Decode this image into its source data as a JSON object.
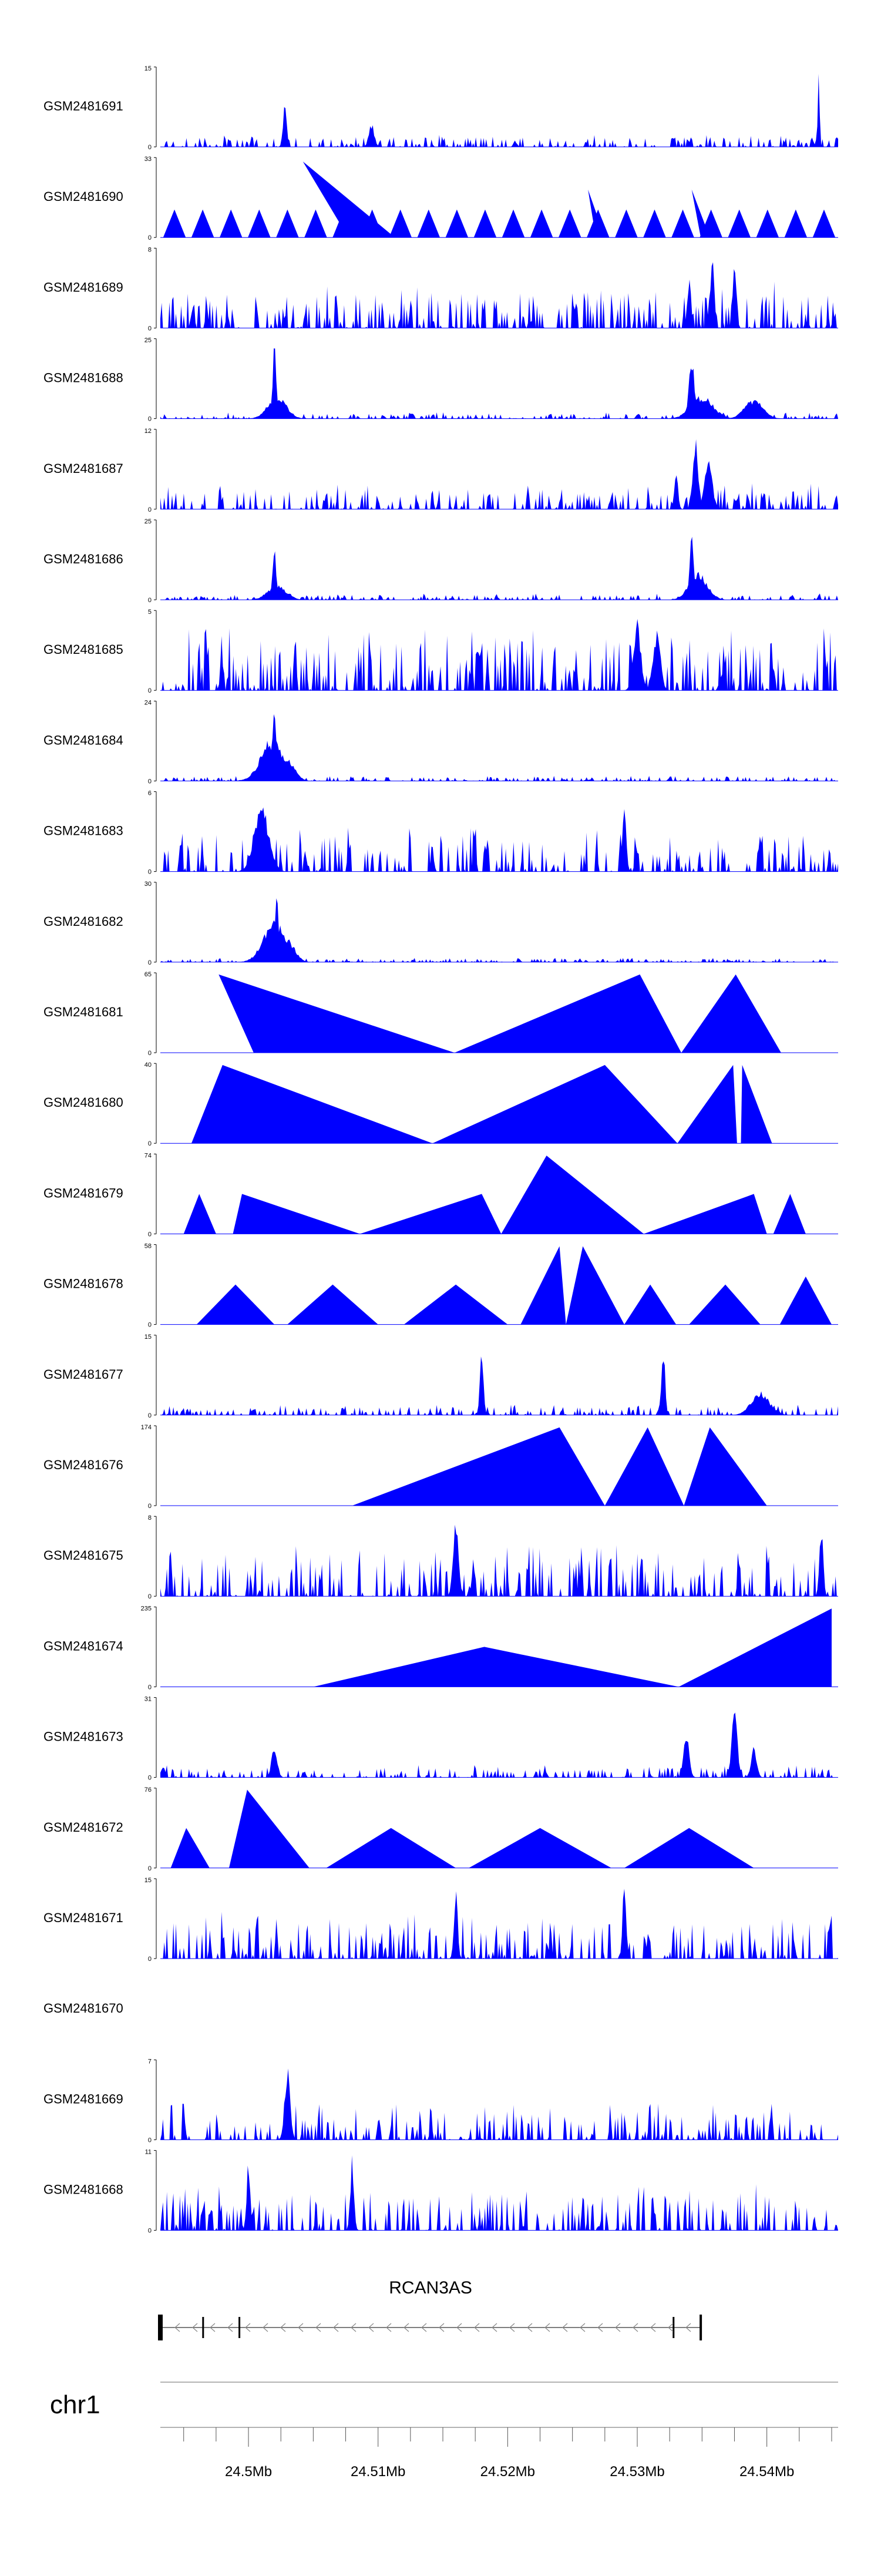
{
  "chart_data": {
    "type": "area",
    "xlim": [
      24.4932,
      24.5455
    ],
    "axis_ticks": [
      "24.5Mb",
      "24.51Mb",
      "24.52Mb",
      "24.53Mb",
      "24.54Mb"
    ],
    "tick_values": [
      24.5,
      24.51,
      24.52,
      24.53,
      24.54
    ],
    "colors": {
      "fill": "#0000ff",
      "axis": "#000000",
      "gene": "#000000",
      "chrom_line": "#9a9a9a"
    },
    "chromosome": "chr1",
    "gene": {
      "name": "RCAN3AS",
      "start": 24.4932,
      "end": 24.5349,
      "strand": "-",
      "exon_marks": [
        24.4965,
        24.4993,
        24.5328
      ]
    },
    "tracks": [
      {
        "name": "GSM2481691",
        "ymax": "15",
        "ymax_num": 15,
        "pattern": "noise",
        "amp": 0.12,
        "peaks": [
          [
            24.5028,
            0.55,
            0.0002
          ],
          [
            24.544,
            0.95,
            0.0001
          ],
          [
            24.5095,
            0.3,
            0.0003
          ]
        ]
      },
      {
        "name": "GSM2481690",
        "ymax": "33",
        "ymax_num": 33,
        "pattern": "tri",
        "tri_count": 24,
        "tri_h": 0.35,
        "big": [
          [
            24.5113,
            24.5042,
            24.5077,
            0.95
          ],
          [
            24.5356,
            24.5342,
            24.5349,
            0.6
          ],
          [
            24.5275,
            24.5262,
            24.5268,
            0.6
          ]
        ]
      },
      {
        "name": "GSM2481689",
        "ymax": "8",
        "ymax_num": 8,
        "pattern": "noise",
        "amp": 0.45,
        "peaks": [
          [
            24.5358,
            0.95,
            0.0002
          ],
          [
            24.5375,
            0.9,
            0.0002
          ],
          [
            24.534,
            0.7,
            0.0002
          ]
        ]
      },
      {
        "name": "GSM2481688",
        "ymax": "25",
        "ymax_num": 25,
        "pattern": "noise",
        "amp": 0.06,
        "peaks": [
          [
            24.502,
            0.95,
            0.0002
          ],
          [
            24.5022,
            0.3,
            0.001
          ],
          [
            24.5342,
            0.8,
            0.0003
          ],
          [
            24.535,
            0.3,
            0.0012
          ],
          [
            24.539,
            0.25,
            0.001
          ]
        ]
      },
      {
        "name": "GSM2481687",
        "ymax": "12",
        "ymax_num": 12,
        "pattern": "noise",
        "amp": 0.25,
        "peaks": [
          [
            24.5345,
            0.9,
            0.0003
          ],
          [
            24.5355,
            0.7,
            0.0004
          ],
          [
            24.533,
            0.5,
            0.0002
          ]
        ]
      },
      {
        "name": "GSM2481686",
        "ymax": "25",
        "ymax_num": 25,
        "pattern": "noise",
        "amp": 0.06,
        "peaks": [
          [
            24.502,
            0.65,
            0.0002
          ],
          [
            24.5022,
            0.2,
            0.001
          ],
          [
            24.5342,
            0.95,
            0.0002
          ],
          [
            24.5347,
            0.35,
            0.001
          ]
        ]
      },
      {
        "name": "GSM2481685",
        "ymax": "5",
        "ymax_num": 5,
        "pattern": "noise",
        "amp": 0.6,
        "peaks": [
          [
            24.53,
            0.9,
            0.0004
          ],
          [
            24.5315,
            0.8,
            0.0004
          ]
        ]
      },
      {
        "name": "GSM2481684",
        "ymax": "24",
        "ymax_num": 24,
        "pattern": "noise",
        "amp": 0.05,
        "peaks": [
          [
            24.502,
            0.95,
            0.0002
          ],
          [
            24.5018,
            0.55,
            0.0012
          ],
          [
            24.503,
            0.3,
            0.0008
          ]
        ]
      },
      {
        "name": "GSM2481683",
        "ymax": "6",
        "ymax_num": 6,
        "pattern": "noise",
        "amp": 0.45,
        "peaks": [
          [
            24.501,
            0.9,
            0.0008
          ],
          [
            24.529,
            0.9,
            0.0002
          ]
        ]
      },
      {
        "name": "GSM2481682",
        "ymax": "30",
        "ymax_num": 30,
        "pattern": "noise",
        "amp": 0.04,
        "peaks": [
          [
            24.5022,
            0.95,
            0.0002
          ],
          [
            24.502,
            0.55,
            0.0012
          ],
          [
            24.503,
            0.3,
            0.0008
          ]
        ]
      },
      {
        "name": "GSM2481681",
        "ymax": "65",
        "ymax_num": 65,
        "pattern": "tri",
        "tri_count": 0,
        "tri_h": 0.0,
        "big": [
          [
            24.5004,
            24.4977,
            24.5159,
            0.98
          ],
          [
            24.5159,
            24.5302,
            24.5334,
            0.98
          ],
          [
            24.5334,
            24.5376,
            24.5411,
            0.98
          ]
        ]
      },
      {
        "name": "GSM2481680",
        "ymax": "40",
        "ymax_num": 40,
        "pattern": "tri",
        "tri_count": 0,
        "tri_h": 0.0,
        "big": [
          [
            24.4956,
            24.498,
            24.5142,
            0.98
          ],
          [
            24.5142,
            24.5275,
            24.5331,
            0.98
          ],
          [
            24.5331,
            24.5374,
            24.5377,
            0.98
          ],
          [
            24.538,
            24.5381,
            24.5404,
            0.98
          ]
        ]
      },
      {
        "name": "GSM2481679",
        "ymax": "74",
        "ymax_num": 74,
        "pattern": "tri",
        "tri_count": 0,
        "tri_h": 0.0,
        "big": [
          [
            24.495,
            24.4962,
            24.4975,
            0.5
          ],
          [
            24.4988,
            24.4995,
            24.5086,
            0.5
          ],
          [
            24.5086,
            24.518,
            24.5195,
            0.5
          ],
          [
            24.5195,
            24.523,
            24.5305,
            0.98
          ],
          [
            24.5305,
            24.539,
            24.54,
            0.5
          ],
          [
            24.5405,
            24.5418,
            24.543,
            0.5
          ]
        ]
      },
      {
        "name": "GSM2481678",
        "ymax": "58",
        "ymax_num": 58,
        "pattern": "tri",
        "tri_count": 0,
        "tri_h": 0.0,
        "big": [
          [
            24.496,
            24.499,
            24.502,
            0.5
          ],
          [
            24.503,
            24.5065,
            24.51,
            0.5
          ],
          [
            24.512,
            24.516,
            24.52,
            0.5
          ],
          [
            24.521,
            24.524,
            24.5245,
            0.98
          ],
          [
            24.5245,
            24.5258,
            24.529,
            0.98
          ],
          [
            24.529,
            24.531,
            24.533,
            0.5
          ],
          [
            24.534,
            24.5368,
            24.5395,
            0.5
          ],
          [
            24.541,
            24.543,
            24.545,
            0.6
          ]
        ]
      },
      {
        "name": "GSM2481677",
        "ymax": "15",
        "ymax_num": 15,
        "pattern": "noise",
        "amp": 0.1,
        "peaks": [
          [
            24.518,
            0.85,
            0.0002
          ],
          [
            24.532,
            0.95,
            0.0002
          ],
          [
            24.5395,
            0.3,
            0.001
          ]
        ]
      },
      {
        "name": "GSM2481676",
        "ymax": "174",
        "ymax_num": 174,
        "pattern": "tri",
        "tri_count": 0,
        "tri_h": 0.0,
        "big": [
          [
            24.508,
            24.524,
            24.5275,
            0.98
          ],
          [
            24.5275,
            24.5308,
            24.5336,
            0.98
          ],
          [
            24.5336,
            24.5356,
            24.54,
            0.98
          ]
        ]
      },
      {
        "name": "GSM2481675",
        "ymax": "8",
        "ymax_num": 8,
        "pattern": "noise",
        "amp": 0.5,
        "peaks": [
          [
            24.516,
            0.95,
            0.0003
          ],
          [
            24.5442,
            0.95,
            0.0002
          ]
        ]
      },
      {
        "name": "GSM2481674",
        "ymax": "235",
        "ymax_num": 235,
        "pattern": "tri",
        "tri_count": 0,
        "tri_h": 0.0,
        "big": [
          [
            24.505,
            24.5182,
            24.5332,
            0.5
          ],
          [
            24.5332,
            24.545,
            24.545,
            0.98
          ]
        ]
      },
      {
        "name": "GSM2481673",
        "ymax": "31",
        "ymax_num": 31,
        "pattern": "noise",
        "amp": 0.12,
        "peaks": [
          [
            24.502,
            0.45,
            0.0003
          ],
          [
            24.5338,
            0.6,
            0.0003
          ],
          [
            24.5375,
            0.95,
            0.0003
          ],
          [
            24.539,
            0.4,
            0.0003
          ]
        ]
      },
      {
        "name": "GSM2481672",
        "ymax": "76",
        "ymax_num": 76,
        "pattern": "tri",
        "tri_count": 0,
        "tri_h": 0.0,
        "big": [
          [
            24.494,
            24.4952,
            24.497,
            0.5
          ],
          [
            24.4985,
            24.4999,
            24.5047,
            0.98
          ],
          [
            24.506,
            24.511,
            24.516,
            0.5
          ],
          [
            24.517,
            24.5225,
            24.528,
            0.5
          ],
          [
            24.529,
            24.534,
            24.539,
            0.5
          ]
        ]
      },
      {
        "name": "GSM2481671",
        "ymax": "15",
        "ymax_num": 15,
        "pattern": "noise",
        "amp": 0.45,
        "peaks": [
          [
            24.516,
            0.95,
            0.0002
          ],
          [
            24.529,
            0.95,
            0.0002
          ]
        ]
      },
      {
        "name": "GSM2481670",
        "ymax": "",
        "ymax_num": 0,
        "pattern": "empty",
        "amp": 0,
        "peaks": []
      },
      {
        "name": "GSM2481669",
        "ymax": "7",
        "ymax_num": 7,
        "pattern": "noise",
        "amp": 0.35,
        "peaks": [
          [
            24.503,
            0.95,
            0.0003
          ]
        ]
      },
      {
        "name": "GSM2481668",
        "ymax": "11",
        "ymax_num": 11,
        "pattern": "noise",
        "amp": 0.45,
        "peaks": [
          [
            24.5,
            0.95,
            0.0002
          ],
          [
            24.508,
            0.95,
            0.0002
          ]
        ]
      }
    ]
  }
}
